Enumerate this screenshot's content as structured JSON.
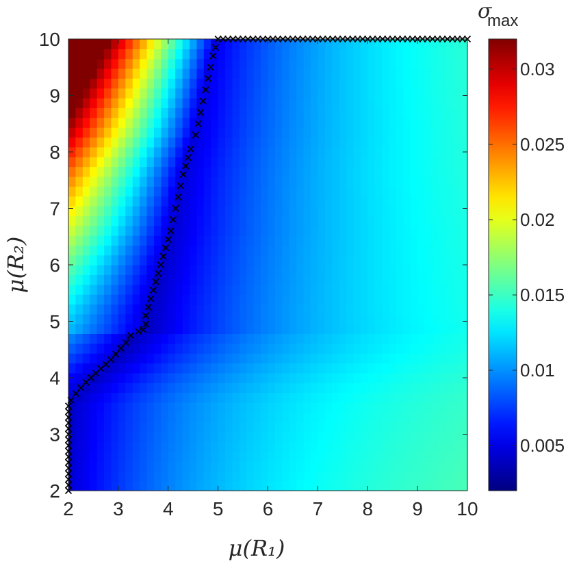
{
  "chart_data": {
    "type": "heatmap",
    "xlabel": "μ(R₁)",
    "ylabel": "μ(R₂)",
    "xlim": [
      2,
      10
    ],
    "ylim": [
      2,
      10
    ],
    "xticks": [
      "2",
      "3",
      "4",
      "5",
      "6",
      "7",
      "8",
      "9",
      "10"
    ],
    "yticks": [
      "2",
      "3",
      "4",
      "5",
      "6",
      "7",
      "8",
      "9",
      "10"
    ],
    "colorbar": {
      "title": "σ",
      "title_sub": "max",
      "range": [
        0.002,
        0.032
      ],
      "ticks": [
        "0.005",
        "0.01",
        "0.015",
        "0.02",
        "0.025",
        "0.03"
      ],
      "tick_values": [
        0.005,
        0.01,
        0.015,
        0.02,
        0.025,
        0.03
      ],
      "colormap": "jet"
    },
    "grid": {
      "nx": 56,
      "ny": 46,
      "surface_description": "sigma_max over mu(R1) x mu(R2)"
    },
    "boundary_marker": "x",
    "boundary_color": "#000000",
    "boundary": {
      "x": [
        2.0,
        2.0,
        2.0,
        2.0,
        2.0,
        2.0,
        2.0,
        2.0,
        2.0,
        2.0,
        2.0,
        2.0,
        2.0,
        2.0,
        2.0,
        2.0,
        2.05,
        2.15,
        2.25,
        2.35,
        2.45,
        2.55,
        2.65,
        2.75,
        2.85,
        2.95,
        3.05,
        3.15,
        3.25,
        3.4,
        3.5,
        3.55,
        3.55,
        3.6,
        3.65,
        3.7,
        3.75,
        3.8,
        3.85,
        3.9,
        3.95,
        4.0,
        4.05,
        4.1,
        4.15,
        4.2,
        4.25,
        4.3,
        4.35,
        4.4,
        4.45,
        4.55,
        4.6,
        4.65,
        4.7,
        4.75,
        4.8,
        4.85,
        4.9,
        4.95,
        5.0,
        5.1,
        5.2,
        5.3,
        5.4,
        5.5,
        5.6,
        5.7,
        5.8,
        5.9,
        6.0,
        6.1,
        6.2,
        6.3,
        6.4,
        6.5,
        6.6,
        6.7,
        6.8,
        6.9,
        7.0,
        7.1,
        7.2,
        7.3,
        7.4,
        7.5,
        7.6,
        7.7,
        7.8,
        7.9,
        8.0,
        8.1,
        8.2,
        8.3,
        8.4,
        8.5,
        8.6,
        8.7,
        8.8,
        8.9,
        9.0,
        9.1,
        9.2,
        9.3,
        9.4,
        9.5,
        9.6,
        9.7,
        9.8,
        9.9,
        10.0
      ],
      "y": [
        2.0,
        2.1,
        2.2,
        2.3,
        2.4,
        2.5,
        2.6,
        2.7,
        2.8,
        2.9,
        3.0,
        3.1,
        3.2,
        3.3,
        3.4,
        3.5,
        3.6,
        3.72,
        3.82,
        3.92,
        4.0,
        4.08,
        4.16,
        4.24,
        4.32,
        4.42,
        4.52,
        4.62,
        4.75,
        4.82,
        4.85,
        4.95,
        5.1,
        5.25,
        5.4,
        5.55,
        5.7,
        5.85,
        6.0,
        6.15,
        6.3,
        6.45,
        6.6,
        6.8,
        7.0,
        7.2,
        7.4,
        7.6,
        7.75,
        7.9,
        8.05,
        8.3,
        8.5,
        8.7,
        8.9,
        9.1,
        9.3,
        9.5,
        9.7,
        9.85,
        10.0,
        10.0,
        10.0,
        10.0,
        10.0,
        10.0,
        10.0,
        10.0,
        10.0,
        10.0,
        10.0,
        10.0,
        10.0,
        10.0,
        10.0,
        10.0,
        10.0,
        10.0,
        10.0,
        10.0,
        10.0,
        10.0,
        10.0,
        10.0,
        10.0,
        10.0,
        10.0,
        10.0,
        10.0,
        10.0,
        10.0,
        10.0,
        10.0,
        10.0,
        10.0,
        10.0,
        10.0,
        10.0,
        10.0,
        10.0,
        10.0,
        10.0,
        10.0,
        10.0,
        10.0,
        10.0,
        10.0,
        10.0,
        10.0,
        10.0,
        10.0
      ]
    }
  }
}
